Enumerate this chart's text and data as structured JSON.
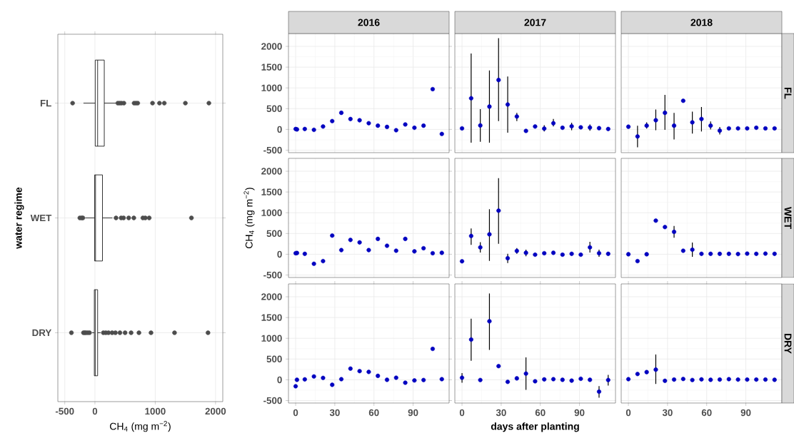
{
  "chart_data": [
    {
      "type": "box",
      "orientation": "horizontal",
      "categories": [
        "FL",
        "WET",
        "DRY"
      ],
      "xlabel": "CH$_{4}$ (mg m$^{−2}$)",
      "ylabel": "water regime",
      "xlim": [
        -615,
        2120
      ],
      "xticks": [
        -500,
        0,
        1000,
        2000
      ],
      "grid": true,
      "boxes": [
        {
          "low": -190,
          "q1": 5,
          "median": 45,
          "q3": 155,
          "high": 350,
          "outliers": [
            -370,
            380,
            410,
            440,
            480,
            650,
            680,
            710,
            955,
            1070,
            1150,
            1500,
            1890
          ]
        },
        {
          "low": -160,
          "q1": -5,
          "median": 10,
          "q3": 125,
          "high": 290,
          "outliers": [
            -250,
            -220,
            -200,
            350,
            435,
            475,
            560,
            645,
            795,
            835,
            900,
            1600
          ]
        },
        {
          "low": -50,
          "q1": -10,
          "median": 5,
          "q3": 45,
          "high": 95,
          "outliers": [
            -390,
            -190,
            -170,
            -150,
            -120,
            -90,
            140,
            180,
            225,
            285,
            340,
            415,
            500,
            600,
            730,
            930,
            1320,
            1875
          ]
        }
      ]
    },
    {
      "type": "scatter",
      "title": "2016",
      "x": [
        0,
        1,
        7,
        14,
        21,
        28,
        35,
        42,
        49,
        56,
        63,
        70,
        77,
        84,
        91,
        98,
        105,
        112
      ],
      "values": [
        10,
        0,
        10,
        -10,
        70,
        200,
        400,
        250,
        220,
        150,
        90,
        60,
        -20,
        120,
        40,
        90,
        970,
        -110
      ],
      "color": "#0000c0",
      "marker": "circle",
      "xlim": [
        -5.5,
        117.6
      ],
      "ylim": [
        -560,
        2310
      ],
      "xticks": [
        0,
        30,
        60,
        90
      ],
      "yticks": [
        -500,
        0,
        500,
        1000,
        1500,
        2000
      ],
      "grid": true,
      "tick_labels": "y"
    },
    {
      "type": "scatter",
      "title": "2017",
      "x": [
        0,
        7,
        14,
        21,
        28,
        35,
        42,
        49,
        56,
        63,
        70,
        77,
        84,
        91,
        98,
        105,
        112
      ],
      "values": [
        25,
        750,
        95,
        550,
        1190,
        600,
        310,
        -35,
        70,
        20,
        150,
        40,
        75,
        50,
        45,
        30,
        10
      ],
      "errors": [
        null,
        [
          -320,
          1830
        ],
        [
          -300,
          490
        ],
        [
          -320,
          1420
        ],
        [
          200,
          2200
        ],
        [
          -80,
          1275
        ],
        [
          200,
          400
        ],
        null,
        null,
        [
          -50,
          100
        ],
        [
          70,
          250
        ],
        null,
        [
          -20,
          160
        ],
        null,
        [
          -30,
          120
        ],
        null,
        null
      ],
      "color": "#0000c0",
      "marker": "circle",
      "xlim": [
        -5.5,
        117.6
      ],
      "ylim": [
        -560,
        2310
      ],
      "xticks": [
        0,
        30,
        60,
        90
      ],
      "yticks": [
        -500,
        0,
        500,
        1000,
        1500,
        2000
      ],
      "grid": true,
      "tick_labels": false
    },
    {
      "type": "scatter",
      "title": "2018",
      "annotations": [
        "FL"
      ],
      "x": [
        0,
        7,
        14,
        21,
        28,
        35,
        42,
        49,
        56,
        63,
        70,
        77,
        84,
        91,
        98,
        105,
        112
      ],
      "values": [
        65,
        -170,
        90,
        220,
        400,
        90,
        690,
        170,
        250,
        90,
        -30,
        25,
        25,
        25,
        40,
        25,
        25
      ],
      "errors": [
        null,
        [
          -430,
          90
        ],
        [
          20,
          170
        ],
        [
          -20,
          480
        ],
        [
          -10,
          830
        ],
        [
          -240,
          400
        ],
        null,
        [
          -100,
          430
        ],
        [
          -50,
          540
        ],
        [
          0,
          190
        ],
        [
          -120,
          60
        ],
        null,
        null,
        null,
        null,
        null,
        null
      ],
      "color": "#0000c0",
      "marker": "circle",
      "xlim": [
        -5.5,
        117.6
      ],
      "ylim": [
        -560,
        2310
      ],
      "xticks": [
        0,
        30,
        60,
        90
      ],
      "yticks": [
        -500,
        0,
        500,
        1000,
        1500,
        2000
      ],
      "grid": true,
      "tick_labels": false
    },
    {
      "type": "scatter",
      "ylabel": "CH$_{4}$ (mg m$^{−2}$)",
      "x": [
        0,
        1,
        7,
        14,
        21,
        28,
        35,
        42,
        49,
        56,
        63,
        70,
        77,
        84,
        91,
        98,
        105,
        112
      ],
      "values": [
        25,
        30,
        10,
        -230,
        -165,
        450,
        100,
        345,
        285,
        100,
        370,
        205,
        85,
        370,
        70,
        145,
        25,
        35
      ],
      "color": "#0000c0",
      "marker": "circle",
      "xlim": [
        -5.5,
        117.6
      ],
      "ylim": [
        -560,
        2310
      ],
      "xticks": [
        0,
        30,
        60,
        90
      ],
      "yticks": [
        -500,
        0,
        500,
        1000,
        1500,
        2000
      ],
      "grid": true,
      "tick_labels": "y"
    },
    {
      "type": "scatter",
      "x": [
        0,
        7,
        14,
        21,
        28,
        35,
        42,
        49,
        56,
        63,
        70,
        77,
        84,
        91,
        98,
        105,
        112
      ],
      "values": [
        -170,
        440,
        165,
        480,
        1050,
        -95,
        80,
        35,
        -10,
        25,
        35,
        -10,
        10,
        -10,
        165,
        25,
        10
      ],
      "errors": [
        null,
        [
          225,
          620
        ],
        [
          40,
          290
        ],
        [
          -160,
          1085
        ],
        [
          250,
          1835
        ],
        [
          -210,
          10
        ],
        [
          10,
          150
        ],
        [
          -50,
          110
        ],
        null,
        null,
        null,
        null,
        null,
        null,
        [
          40,
          300
        ],
        [
          -60,
          110
        ],
        null
      ],
      "color": "#0000c0",
      "marker": "circle",
      "xlim": [
        -5.5,
        117.6
      ],
      "ylim": [
        -560,
        2310
      ],
      "xticks": [
        0,
        30,
        60,
        90
      ],
      "yticks": [
        -500,
        0,
        500,
        1000,
        1500,
        2000
      ],
      "grid": true,
      "tick_labels": false
    },
    {
      "type": "scatter",
      "annotations": [
        "WET"
      ],
      "x": [
        0,
        7,
        14,
        21,
        28,
        35,
        42,
        49,
        56,
        63,
        70,
        77,
        84,
        91,
        98,
        105,
        112
      ],
      "values": [
        0,
        -165,
        0,
        810,
        655,
        540,
        85,
        110,
        10,
        10,
        10,
        10,
        5,
        15,
        10,
        15,
        10
      ],
      "errors": [
        null,
        null,
        null,
        null,
        null,
        [
          400,
          680
        ],
        null,
        [
          -60,
          280
        ],
        null,
        null,
        null,
        null,
        null,
        null,
        null,
        null,
        null
      ],
      "color": "#0000c0",
      "marker": "circle",
      "xlim": [
        -5.5,
        117.6
      ],
      "ylim": [
        -560,
        2310
      ],
      "xticks": [
        0,
        30,
        60,
        90
      ],
      "yticks": [
        -500,
        0,
        500,
        1000,
        1500,
        2000
      ],
      "grid": true,
      "tick_labels": false
    },
    {
      "type": "scatter",
      "x": [
        0,
        1,
        7,
        14,
        21,
        28,
        35,
        42,
        49,
        56,
        63,
        70,
        77,
        84,
        91,
        98,
        105,
        112
      ],
      "values": [
        -155,
        0,
        10,
        80,
        45,
        -120,
        15,
        270,
        210,
        190,
        95,
        0,
        50,
        -70,
        -15,
        -5,
        745,
        15
      ],
      "color": "#0000c0",
      "marker": "circle",
      "xlim": [
        -5.5,
        117.6
      ],
      "ylim": [
        -560,
        2310
      ],
      "xticks": [
        0,
        30,
        60,
        90
      ],
      "yticks": [
        -500,
        0,
        500,
        1000,
        1500,
        2000
      ],
      "grid": true
    },
    {
      "type": "scatter",
      "xlabel": "days after planting",
      "x": [
        0,
        7,
        14,
        21,
        28,
        35,
        42,
        49,
        56,
        63,
        70,
        77,
        84,
        91,
        98,
        105,
        112
      ],
      "values": [
        50,
        970,
        -5,
        1410,
        330,
        -50,
        35,
        150,
        -35,
        10,
        15,
        0,
        -20,
        25,
        0,
        -285,
        -5
      ],
      "errors": [
        [
          -70,
          160
        ],
        [
          460,
          1470
        ],
        null,
        [
          720,
          2080
        ],
        null,
        null,
        null,
        [
          -240,
          540
        ],
        null,
        null,
        null,
        null,
        null,
        null,
        null,
        [
          -430,
          -150
        ],
        [
          -140,
          120
        ]
      ],
      "color": "#0000c0",
      "marker": "circle",
      "xlim": [
        -5.5,
        117.6
      ],
      "ylim": [
        -560,
        2310
      ],
      "xticks": [
        0,
        30,
        60,
        90
      ],
      "yticks": [
        -500,
        0,
        500,
        1000,
        1500,
        2000
      ],
      "grid": true,
      "tick_labels": "x"
    },
    {
      "type": "scatter",
      "annotations": [
        "DRY"
      ],
      "x": [
        0,
        7,
        14,
        21,
        28,
        35,
        42,
        49,
        56,
        63,
        70,
        77,
        84,
        91,
        98,
        105,
        112
      ],
      "values": [
        15,
        140,
        185,
        245,
        -25,
        5,
        20,
        -5,
        10,
        0,
        5,
        15,
        5,
        5,
        5,
        5,
        0
      ],
      "errors": [
        null,
        null,
        null,
        [
          -100,
          610
        ],
        null,
        null,
        null,
        null,
        null,
        null,
        null,
        null,
        null,
        null,
        null,
        null,
        null
      ],
      "color": "#0000c0",
      "marker": "circle",
      "xlim": [
        -5.5,
        117.6
      ],
      "ylim": [
        -560,
        2310
      ],
      "xticks": [
        0,
        30,
        60,
        90
      ],
      "yticks": [
        -500,
        0,
        500,
        1000,
        1500,
        2000
      ],
      "grid": true,
      "tick_labels": "x"
    }
  ]
}
